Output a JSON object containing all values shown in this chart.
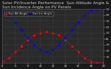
{
  "title": "Solar PV/Inverter Performance  Sun Altitude Angle & Sun Incidence Angle on PV Panels",
  "legend_labels": [
    "Sun Alt Angle",
    "Sun Inc Angle"
  ],
  "line_colors": [
    "#ff0000",
    "#0000ff"
  ],
  "bg_color": "#1a1a1a",
  "plot_bg": "#2a2a2a",
  "grid_color": "#555555",
  "text_color": "#cccccc",
  "ylim": [
    0,
    90
  ],
  "yticks": [
    10,
    20,
    30,
    40,
    50,
    60,
    70,
    80,
    90
  ],
  "hours": [
    4,
    5,
    6,
    7,
    8,
    9,
    10,
    11,
    12,
    13,
    14,
    15,
    16,
    17,
    18,
    19,
    20
  ],
  "sun_altitude": [
    2,
    8,
    18,
    28,
    38,
    46,
    50,
    52,
    50,
    46,
    38,
    28,
    18,
    8,
    2,
    0,
    0
  ],
  "sun_incidence": [
    88,
    80,
    68,
    55,
    42,
    30,
    22,
    18,
    22,
    30,
    42,
    55,
    68,
    80,
    88,
    90,
    90
  ],
  "marker_size": 2.5,
  "title_fontsize": 4.2,
  "tick_fontsize": 3.2,
  "legend_fontsize": 3.0,
  "linewidth": 0.7
}
